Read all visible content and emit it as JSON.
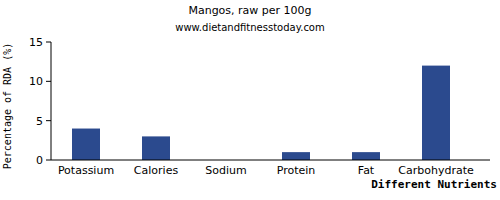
{
  "chart_data": {
    "type": "bar",
    "title": "Mangos, raw per 100g",
    "subtitle": "www.dietandfitnesstoday.com",
    "x_label": "Different Nutrients",
    "y_label": "Percentage of RDA (%)",
    "categories": [
      "Potassium",
      "Calories",
      "Sodium",
      "Protein",
      "Fat",
      "Carbohydrate"
    ],
    "values": [
      4,
      3,
      0,
      1,
      1,
      12
    ],
    "color": "#2b4a8e",
    "ylim": [
      0,
      15
    ],
    "yticks": [
      0,
      5,
      10,
      15
    ],
    "grid": false
  }
}
